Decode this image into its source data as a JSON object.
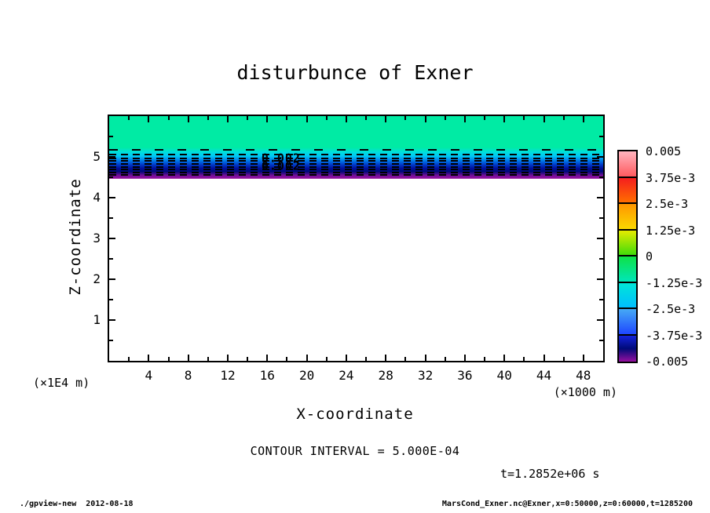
{
  "title": "disturbunce of Exner",
  "y_axis": {
    "label": "Z-coordinate",
    "units": "(×1E4 m)",
    "major_ticks": [
      1,
      2,
      3,
      4,
      5
    ],
    "minor_tick_step": 0.5,
    "range": [
      0,
      6
    ]
  },
  "x_axis": {
    "label": "X-coordinate",
    "units": "(×1000 m)",
    "major_ticks": [
      4,
      8,
      12,
      16,
      20,
      24,
      28,
      32,
      36,
      40,
      44,
      48
    ],
    "minor_tick_step": 2,
    "range": [
      0,
      50
    ]
  },
  "annotations": {
    "contour_interval": "CONTOUR INTERVAL = 5.000E-04",
    "time": "t=1.2852e+06 s"
  },
  "footer": {
    "left": "./gpview-new  2012-08-18",
    "right": "MarsCond_Exner.nc@Exner,x=0:50000,z=0:60000,t=1285200"
  },
  "colorbar": {
    "labels": [
      "0.005",
      "3.75e-3",
      "2.5e-3",
      "1.25e-3",
      "0",
      "-1.25e-3",
      "-2.5e-3",
      "-3.75e-3",
      "-0.005"
    ],
    "blocks": [
      {
        "from": "0.005",
        "to": "3.75e-3",
        "colors": [
          "#FFB4BE",
          "#FF5A5F"
        ]
      },
      {
        "from": "3.75e-3",
        "to": "2.5e-3",
        "colors": [
          "#F51E1E",
          "#FF6E00"
        ]
      },
      {
        "from": "2.5e-3",
        "to": "1.25e-3",
        "colors": [
          "#FF9600",
          "#FAD700"
        ]
      },
      {
        "from": "1.25e-3",
        "to": "0",
        "colors": [
          "#E6EB00",
          "#41DC0A"
        ]
      },
      {
        "from": "0",
        "to": "-1.25e-3",
        "colors": [
          "#0FE146",
          "#00E6B9"
        ]
      },
      {
        "from": "-1.25e-3",
        "to": "-2.5e-3",
        "colors": [
          "#00E6D7",
          "#00BEFF"
        ]
      },
      {
        "from": "-2.5e-3",
        "to": "-3.75e-3",
        "colors": [
          "#46AAF5",
          "#1E46FF"
        ]
      },
      {
        "from": "-3.75e-3",
        "to": "-0.005",
        "colors": [
          "#1423DC",
          "#000A78",
          "#960FA0"
        ]
      }
    ]
  },
  "chart_data": {
    "type": "heatmap",
    "subtype": "filled contour x-z cross section (gpview / GPhys output)",
    "title": "disturbunce of Exner",
    "xlabel": "X-coordinate",
    "ylabel": "Z-coordinate",
    "x_units": "×1000 m",
    "y_units": "×1E4 m",
    "xlim": [
      0,
      50
    ],
    "ylim": [
      0,
      6
    ],
    "grid": false,
    "legend_position": "right colorbar",
    "contour_interval": 0.0005,
    "colorbar_levels": [
      0.005,
      0.00375,
      0.0025,
      0.00125,
      0,
      -0.00125,
      -0.0025,
      -0.00375,
      -0.005
    ],
    "time_annotation": "t=1.2852e+06 s",
    "contour_label_texts": [
      "0.002",
      "0.002"
    ],
    "contour_label_positions": [
      {
        "x": 17.4,
        "z": 4.97
      },
      {
        "x": 17.4,
        "z": 4.77
      }
    ],
    "field_description": "Horizontally uniform layered disturbance: green (~0 to -1.25e-3) from z=6.0 down to ~z=5.2, then thin cyan/blue/navy bands decreasing to ~-0.005, purple band at ~z=4.5, white (out of range) below; dashed black contours inside the layered band",
    "band_profile": [
      {
        "z": 6.0,
        "color": "#00EBA4"
      },
      {
        "z": 5.23,
        "color": "#00EBA4"
      },
      {
        "z": 5.12,
        "color": "#00E0DC"
      },
      {
        "z": 5.02,
        "color": "#00C8F5"
      },
      {
        "z": 4.92,
        "color": "#0082EB"
      },
      {
        "z": 4.82,
        "color": "#0041CD"
      },
      {
        "z": 4.72,
        "color": "#000F9B"
      },
      {
        "z": 4.64,
        "color": "#000A78"
      },
      {
        "z": 4.55,
        "color": "#6E0F96"
      },
      {
        "z": 4.47,
        "color": "#960FA0"
      },
      {
        "z": 4.46,
        "color": "#FFFFFF"
      },
      {
        "z": 0.0,
        "color": "#FFFFFF"
      }
    ],
    "dashed_contour_z": [
      5.18,
      5.05,
      4.97,
      4.9,
      4.83,
      4.76,
      4.69,
      4.62,
      4.55
    ]
  }
}
